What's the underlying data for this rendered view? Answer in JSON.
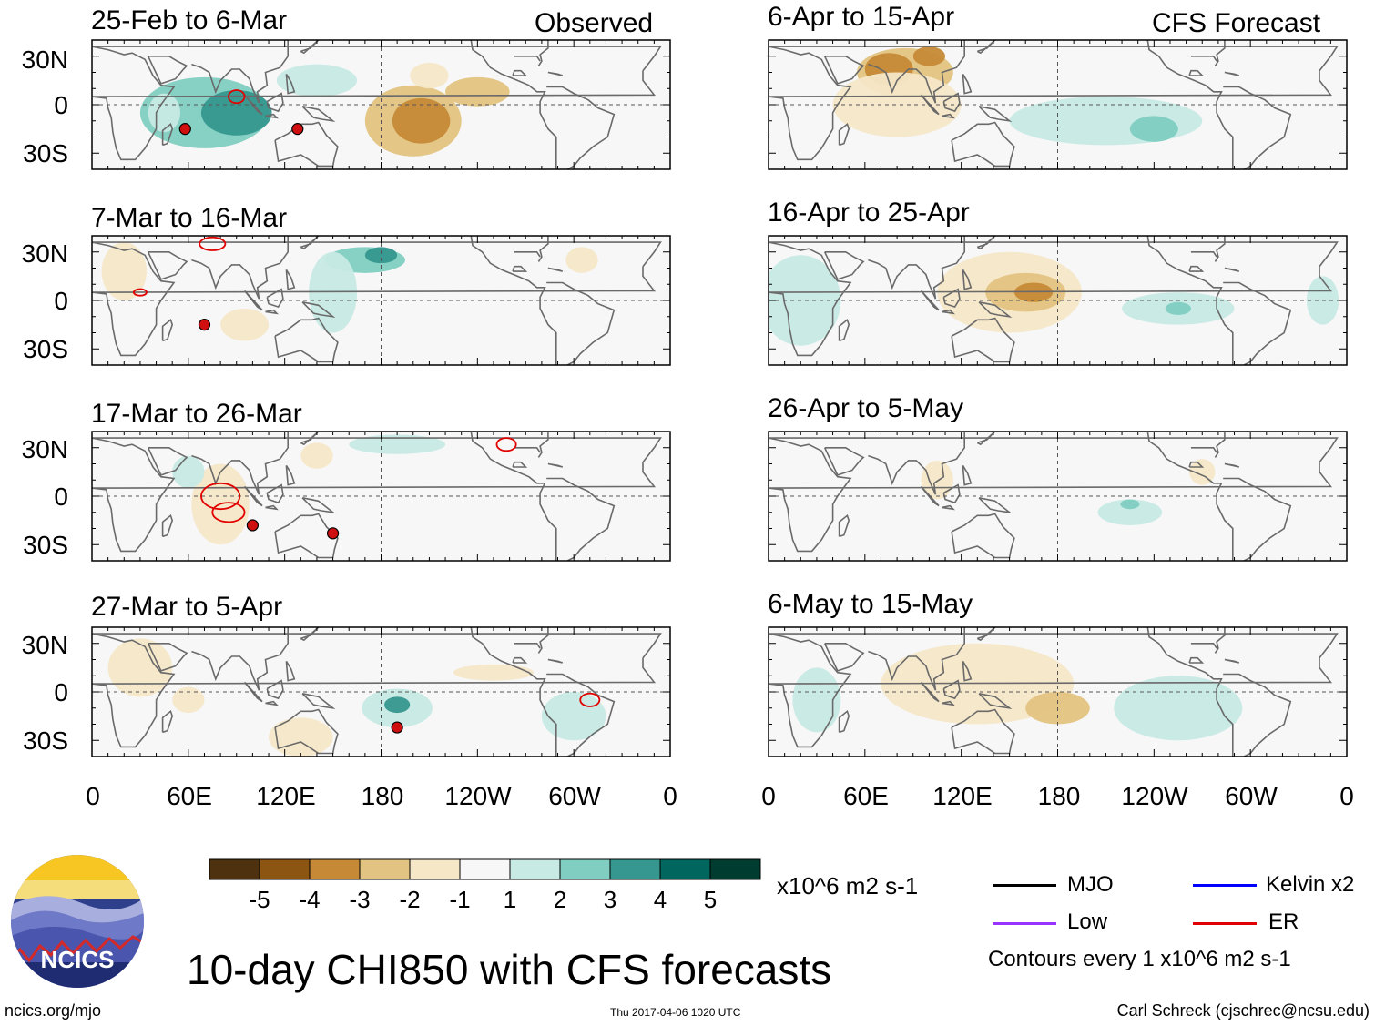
{
  "figure": {
    "title": "10-day CHI850 with CFS forecasts",
    "observed_label": "Observed",
    "forecast_label": "CFS Forecast"
  },
  "panels_observed": [
    {
      "label": "25-Feb to 6-Mar"
    },
    {
      "label": "7-Mar to 16-Mar"
    },
    {
      "label": "17-Mar to 26-Mar"
    },
    {
      "label": "27-Mar to 5-Apr"
    }
  ],
  "panels_forecast": [
    {
      "label": "6-Apr to 15-Apr"
    },
    {
      "label": "16-Apr to 25-Apr"
    },
    {
      "label": "26-Apr to 5-May"
    },
    {
      "label": "6-May to 15-May"
    }
  ],
  "axes": {
    "lat_labels": [
      "30N",
      "0",
      "30S"
    ],
    "lon_labels": [
      "0",
      "60E",
      "120E",
      "180",
      "120W",
      "60W",
      "0"
    ]
  },
  "colorbar": {
    "labels": [
      "-5",
      "-4",
      "-3",
      "-2",
      "-1",
      "1",
      "2",
      "3",
      "4",
      "5"
    ],
    "colors": [
      "#4e3210",
      "#8c5512",
      "#c68a36",
      "#e3c381",
      "#f6e7c7",
      "#f7f7f7",
      "#c7eae4",
      "#80cdc1",
      "#35978f",
      "#01665e",
      "#003c30"
    ],
    "units": "x10^6 m2 s-1"
  },
  "legend": {
    "items": [
      {
        "label": "MJO",
        "color": "#000000"
      },
      {
        "label": "Kelvin x2",
        "color": "#0000ff"
      },
      {
        "label": "Low",
        "color": "#9933ff"
      },
      {
        "label": "ER",
        "color": "#e00000"
      }
    ],
    "contours_note": "Contours every 1 x10^6 m2 s-1"
  },
  "logo": {
    "text": "NCICS"
  },
  "footer": {
    "site": "ncics.org/mjo",
    "timestamp": "Thu 2017-04-06 1020 UTC",
    "author": "Carl Schreck (cjschrec@ncsu.edu)"
  }
}
